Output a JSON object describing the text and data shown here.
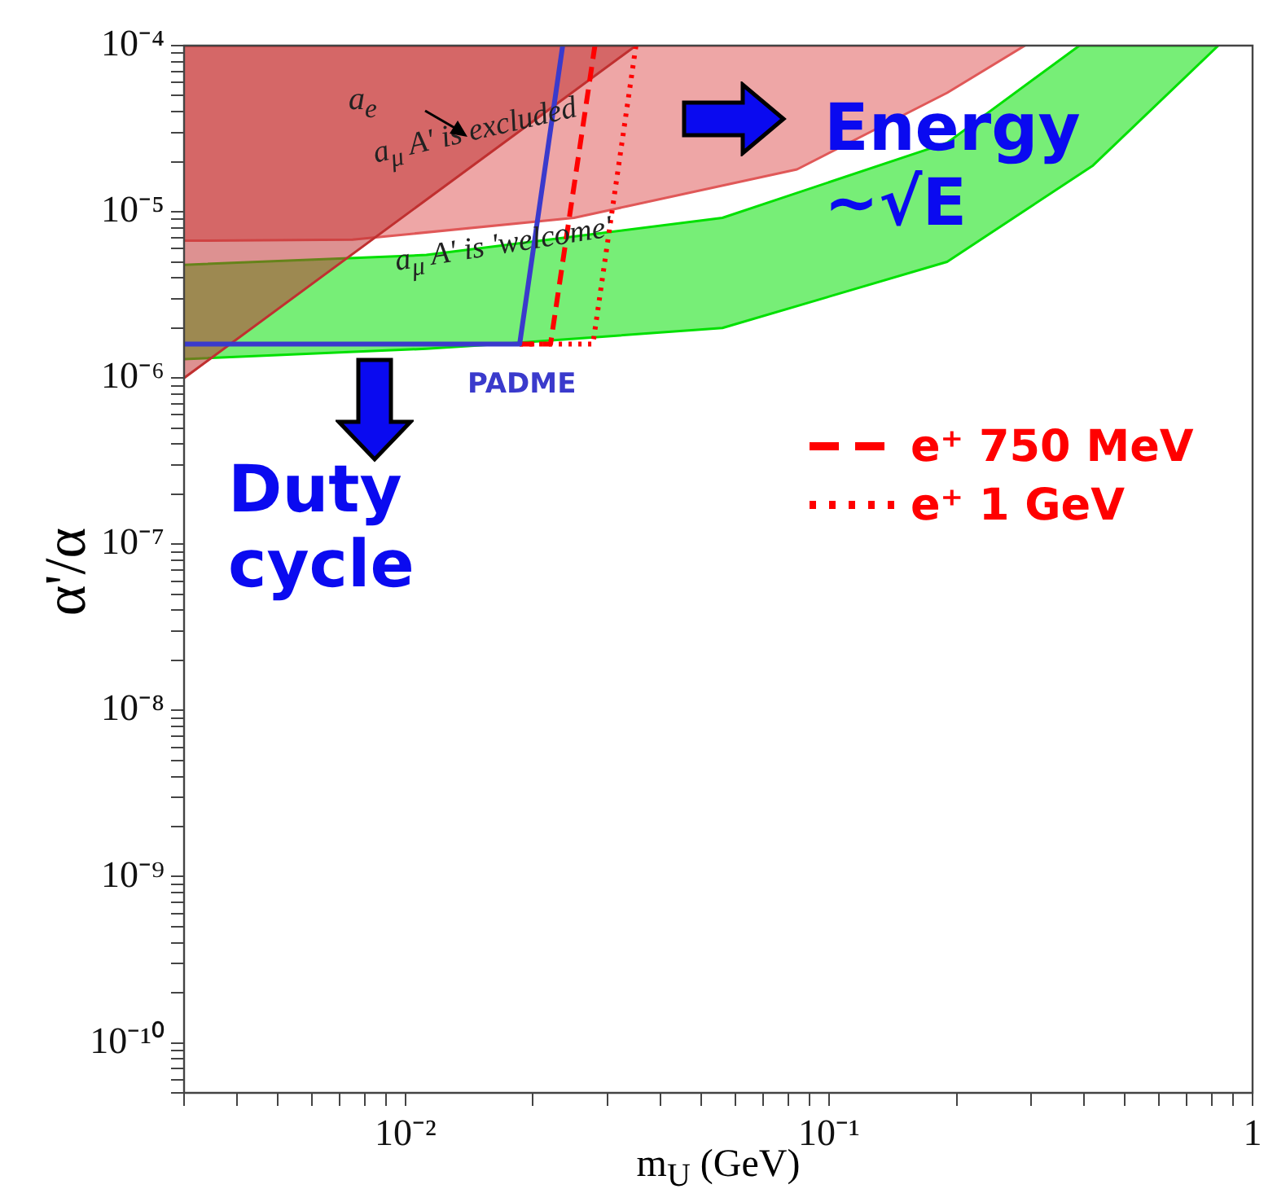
{
  "chart_data": {
    "type": "line",
    "xlabel": "m$_{U}$ (GeV)",
    "ylabel": "α'/α",
    "log": "xy",
    "legend": "right",
    "xlim": [
      0.003,
      1
    ],
    "ylim": [
      5e-11,
      0.0001
    ],
    "xticks": [
      {
        "value": 0.003,
        "label": null
      },
      {
        "value": 0.004,
        "label": null
      },
      {
        "value": 0.005,
        "label": null
      },
      {
        "value": 0.006,
        "label": null
      },
      {
        "value": 0.007,
        "label": null
      },
      {
        "value": 0.008,
        "label": null
      },
      {
        "value": 0.009,
        "label": null
      },
      {
        "value": 0.01,
        "label": "10⁻²"
      },
      {
        "value": 0.02,
        "label": null
      },
      {
        "value": 0.03,
        "label": null
      },
      {
        "value": 0.04,
        "label": null
      },
      {
        "value": 0.05,
        "label": null
      },
      {
        "value": 0.06,
        "label": null
      },
      {
        "value": 0.07,
        "label": null
      },
      {
        "value": 0.08,
        "label": null
      },
      {
        "value": 0.09,
        "label": null
      },
      {
        "value": 0.1,
        "label": "10⁻¹"
      },
      {
        "value": 0.2,
        "label": null
      },
      {
        "value": 0.3,
        "label": null
      },
      {
        "value": 0.4,
        "label": null
      },
      {
        "value": 0.5,
        "label": null
      },
      {
        "value": 0.6,
        "label": null
      },
      {
        "value": 0.7,
        "label": null
      },
      {
        "value": 0.8,
        "label": null
      },
      {
        "value": 0.9,
        "label": null
      },
      1
    ],
    "yticks": [
      {
        "value": 5e-11,
        "label": null
      },
      {
        "value": 6e-11,
        "label": null
      },
      {
        "value": 7e-11,
        "label": null
      },
      {
        "value": 8e-11,
        "label": null
      },
      {
        "value": 9e-11,
        "label": null
      },
      {
        "value": 1e-10,
        "label": "10⁻¹⁰"
      },
      {
        "value": 2e-10,
        "label": null
      },
      {
        "value": 3e-10,
        "label": null
      },
      {
        "value": 4e-10,
        "label": null
      },
      {
        "value": 5e-10,
        "label": null
      },
      {
        "value": 6e-10,
        "label": null
      },
      {
        "value": 7e-10,
        "label": null
      },
      {
        "value": 8e-10,
        "label": null
      },
      {
        "value": 9e-10,
        "label": null
      },
      {
        "value": 1e-09,
        "label": "10⁻⁹"
      },
      {
        "value": 2e-09,
        "label": null
      },
      {
        "value": 3e-09,
        "label": null
      },
      {
        "value": 4e-09,
        "label": null
      },
      {
        "value": 5e-09,
        "label": null
      },
      {
        "value": 6e-09,
        "label": null
      },
      {
        "value": 7e-09,
        "label": null
      },
      {
        "value": 8e-09,
        "label": null
      },
      {
        "value": 9e-09,
        "label": null
      },
      {
        "value": 1e-08,
        "label": "10⁻⁸"
      },
      {
        "value": 2e-08,
        "label": null
      },
      {
        "value": 3e-08,
        "label": null
      },
      {
        "value": 4e-08,
        "label": null
      },
      {
        "value": 5e-08,
        "label": null
      },
      {
        "value": 6e-08,
        "label": null
      },
      {
        "value": 7e-08,
        "label": null
      },
      {
        "value": 8e-08,
        "label": null
      },
      {
        "value": 9e-08,
        "label": null
      },
      {
        "value": 1e-07,
        "label": "10⁻⁷"
      },
      {
        "value": 2e-07,
        "label": null
      },
      {
        "value": 3e-07,
        "label": null
      },
      {
        "value": 4e-07,
        "label": null
      },
      {
        "value": 5e-07,
        "label": null
      },
      {
        "value": 6e-07,
        "label": null
      },
      {
        "value": 7e-07,
        "label": null
      },
      {
        "value": 8e-07,
        "label": null
      },
      {
        "value": 9e-07,
        "label": null
      },
      {
        "value": 1e-06,
        "label": "10⁻⁶"
      },
      {
        "value": 2e-06,
        "label": null
      },
      {
        "value": 3e-06,
        "label": null
      },
      {
        "value": 4e-06,
        "label": null
      },
      {
        "value": 5e-06,
        "label": null
      },
      {
        "value": 6e-06,
        "label": null
      },
      {
        "value": 7e-06,
        "label": null
      },
      {
        "value": 8e-06,
        "label": null
      },
      {
        "value": 9e-06,
        "label": null
      },
      {
        "value": 1e-05,
        "label": "10⁻⁵"
      },
      {
        "value": 2e-05,
        "label": null
      },
      {
        "value": 3e-05,
        "label": null
      },
      {
        "value": 4e-05,
        "label": null
      },
      {
        "value": 5e-05,
        "label": null
      },
      {
        "value": 6e-05,
        "label": null
      },
      {
        "value": 7e-05,
        "label": null
      },
      {
        "value": 8e-05,
        "label": null
      },
      {
        "value": 9e-05,
        "label": null
      },
      {
        "value": 0.0001,
        "label": "10⁻⁴"
      }
    ],
    "series": [
      {
        "type": "area",
        "color": "#00e000",
        "x": [
          0.003,
          0.0112,
          0.0167,
          0.056,
          0.19,
          0.42,
          0.83,
          0.39,
          0.19,
          0.056,
          0.0112,
          0.003
        ],
        "values": [
          1.3e-06,
          1.5e-06,
          1.6e-06,
          2e-06,
          5e-06,
          1.9e-05,
          0.0001,
          0.0001,
          2.6e-05,
          9.2e-06,
          5.5e-06,
          4.8e-06
        ]
      },
      {
        "type": "area",
        "color": "#e05858",
        "x": [
          0.003,
          0.0075,
          0.025,
          0.084,
          0.19,
          0.29,
          0.003
        ],
        "values": [
          6.7e-06,
          6.8e-06,
          9.2e-06,
          1.8e-05,
          5.2e-05,
          0.0001,
          0.0001
        ]
      },
      {
        "type": "area",
        "color": "#c03030",
        "x": [
          0.003,
          0.035,
          0.003
        ],
        "values": [
          1e-06,
          0.0001,
          0.0001
        ]
      },
      {
        "name": "PADME",
        "color": "#3a3acc",
        "line_style": "solid",
        "x": [
          0.003,
          0.0186,
          0.0235
        ],
        "values": [
          1.6e-06,
          1.6e-06,
          0.0001
        ]
      },
      {
        "name": "e⁺ 750 MeV",
        "color": "#ff0000",
        "line_style": "dashed",
        "x": [
          0.0186,
          0.022,
          0.028
        ],
        "values": [
          1.6e-06,
          1.6e-06,
          0.0001
        ]
      },
      {
        "name": "e⁺ 1 GeV",
        "color": "#ff0000",
        "line_style": "dotted",
        "x": [
          0.0186,
          0.0277,
          0.035
        ],
        "values": [
          1.6e-06,
          1.6e-06,
          0.0001
        ]
      }
    ],
    "annotations": [
      "a$_{e}$",
      "a$_{μ}$ A' is excluded",
      "a$_{μ}$ A' is 'welcome'",
      "Energy ~√E",
      "Duty cycle"
    ]
  }
}
